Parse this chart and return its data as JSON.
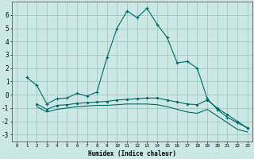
{
  "xlabel": "Humidex (Indice chaleur)",
  "background_color": "#cce8e5",
  "grid_color": "#a0c8c4",
  "line_color": "#006666",
  "xlim": [
    -0.5,
    23.5
  ],
  "ylim": [
    -3.5,
    7.0
  ],
  "yticks": [
    -3,
    -2,
    -1,
    0,
    1,
    2,
    3,
    4,
    5,
    6
  ],
  "xticks": [
    0,
    1,
    2,
    3,
    4,
    5,
    6,
    7,
    8,
    9,
    10,
    11,
    12,
    13,
    14,
    15,
    16,
    17,
    18,
    19,
    20,
    21,
    22,
    23
  ],
  "series1_x": [
    1,
    2,
    3,
    4,
    5,
    6,
    7,
    8,
    9,
    10,
    11,
    12,
    13,
    14,
    15,
    16,
    17,
    18,
    19,
    20,
    21,
    22,
    23
  ],
  "series1_y": [
    1.3,
    0.7,
    -0.7,
    -0.3,
    -0.25,
    0.1,
    -0.1,
    0.2,
    2.8,
    5.0,
    6.3,
    5.8,
    6.5,
    5.3,
    4.3,
    2.4,
    2.5,
    2.0,
    -0.3,
    -1.1,
    -1.7,
    -2.1,
    -2.5
  ],
  "series2_x": [
    2,
    3,
    4,
    5,
    6,
    7,
    8,
    9,
    10,
    11,
    12,
    13,
    14,
    15,
    16,
    17,
    18,
    19,
    20,
    21,
    22,
    23
  ],
  "series2_y": [
    -0.7,
    -1.1,
    -0.8,
    -0.75,
    -0.65,
    -0.6,
    -0.55,
    -0.5,
    -0.4,
    -0.35,
    -0.3,
    -0.25,
    -0.25,
    -0.4,
    -0.55,
    -0.7,
    -0.75,
    -0.4,
    -1.0,
    -1.5,
    -2.0,
    -2.5
  ],
  "series3_x": [
    2,
    3,
    4,
    5,
    6,
    7,
    8,
    9,
    10,
    11,
    12,
    13,
    14,
    15,
    16,
    17,
    18,
    19,
    20,
    21,
    22,
    23
  ],
  "series3_y": [
    -0.9,
    -1.3,
    -1.1,
    -1.0,
    -0.9,
    -0.85,
    -0.8,
    -0.8,
    -0.75,
    -0.7,
    -0.7,
    -0.7,
    -0.75,
    -0.9,
    -1.1,
    -1.3,
    -1.4,
    -1.1,
    -1.6,
    -2.1,
    -2.6,
    -2.8
  ]
}
